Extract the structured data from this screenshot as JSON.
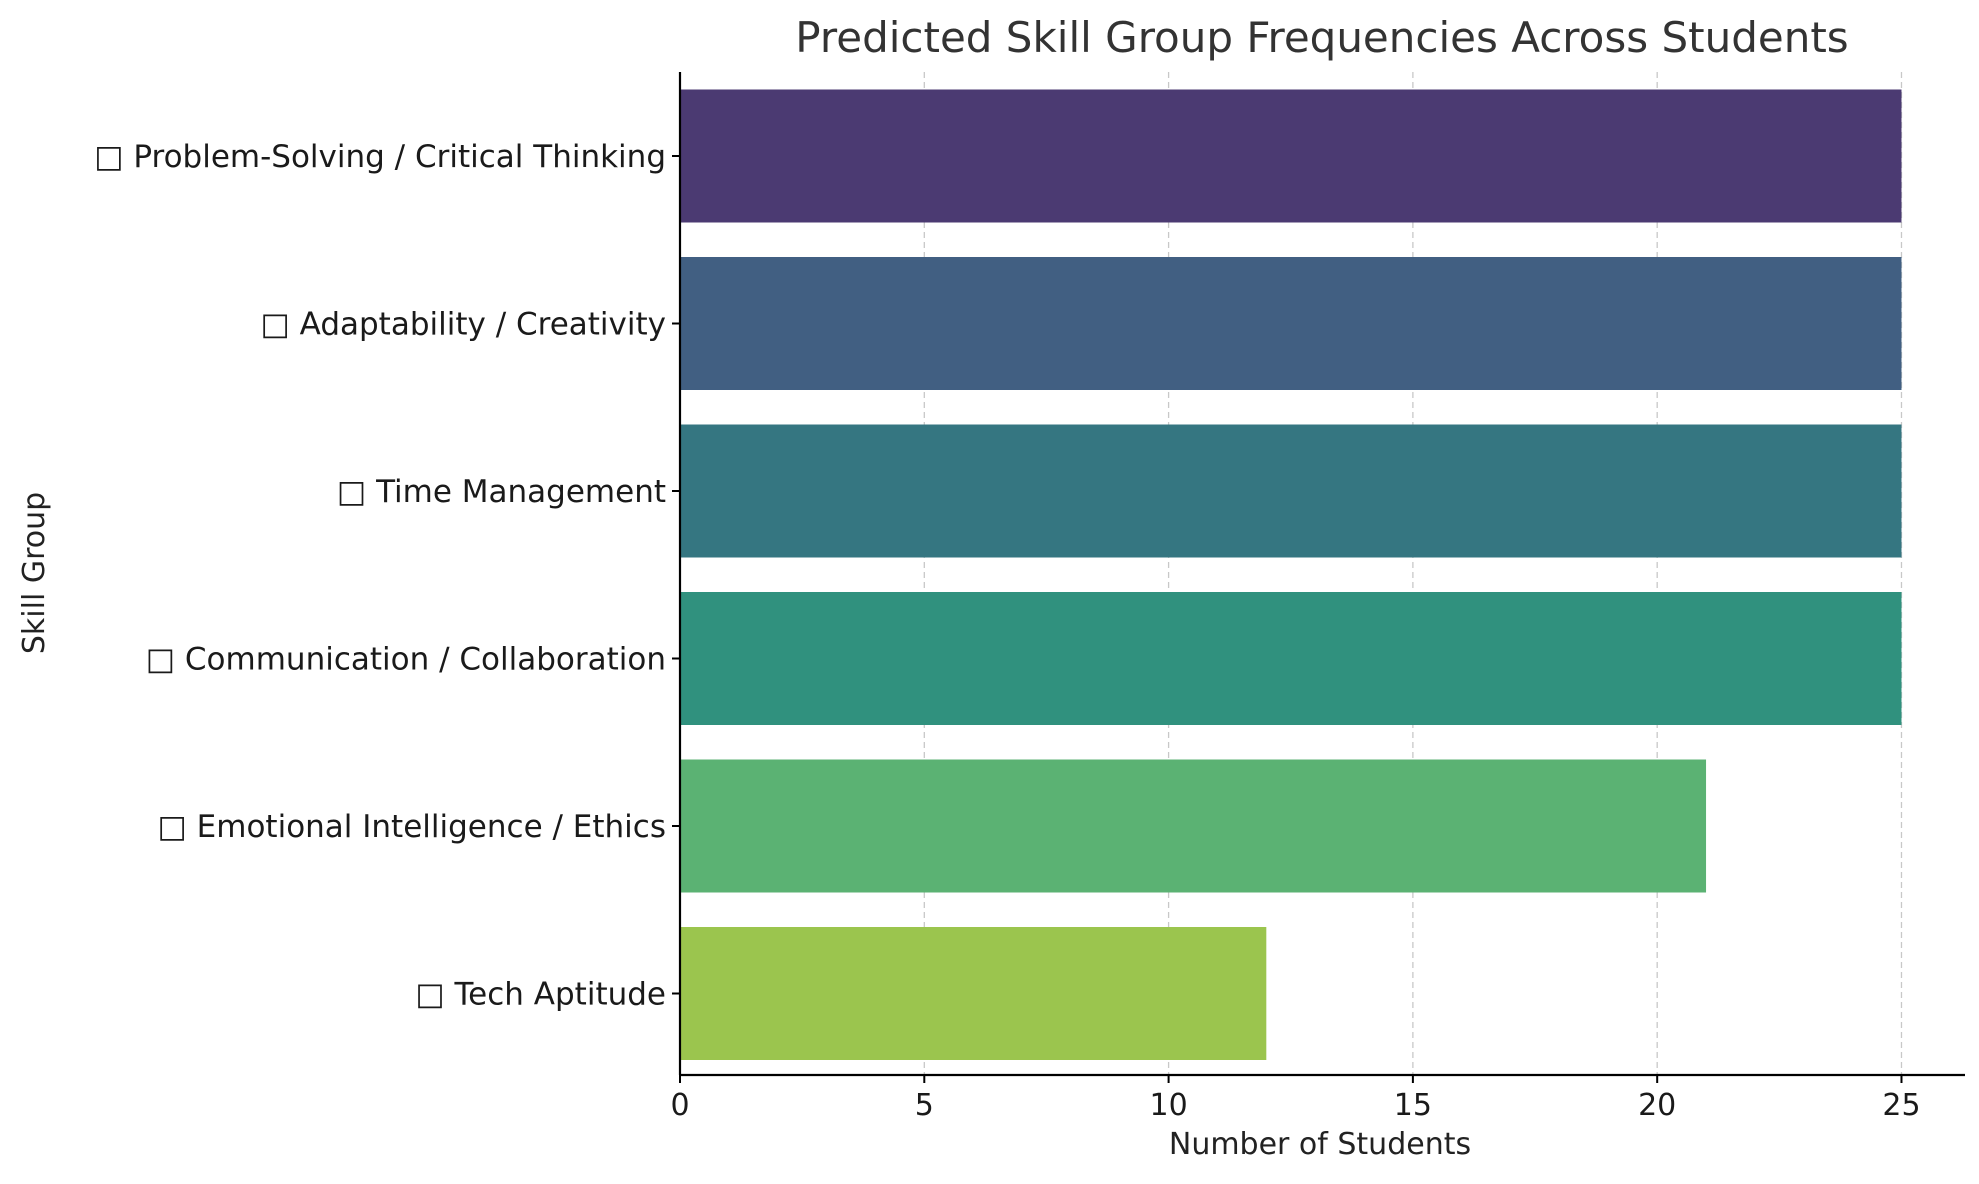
{
  "chart_data": {
    "type": "bar",
    "orientation": "horizontal",
    "title": "Predicted Skill Group Frequencies Across Students",
    "xlabel": "Number of Students",
    "ylabel": "Skill Group",
    "categories": [
      "□ Problem-Solving / Critical Thinking",
      "□ Adaptability / Creativity",
      "□ Time Management",
      "□ Communication / Collaboration",
      "□ Emotional Intelligence / Ethics",
      "□ Tech Aptitude"
    ],
    "values": [
      25,
      25,
      25,
      25,
      21,
      12
    ],
    "colors": [
      "#4b3a72",
      "#415f82",
      "#357681",
      "#30917e",
      "#5bb273",
      "#9bc54e"
    ],
    "xlim": [
      0,
      26.3
    ],
    "xticks": [
      0,
      5,
      10,
      15,
      20,
      25
    ],
    "grid": "vertical-dashed",
    "legend": "none"
  }
}
